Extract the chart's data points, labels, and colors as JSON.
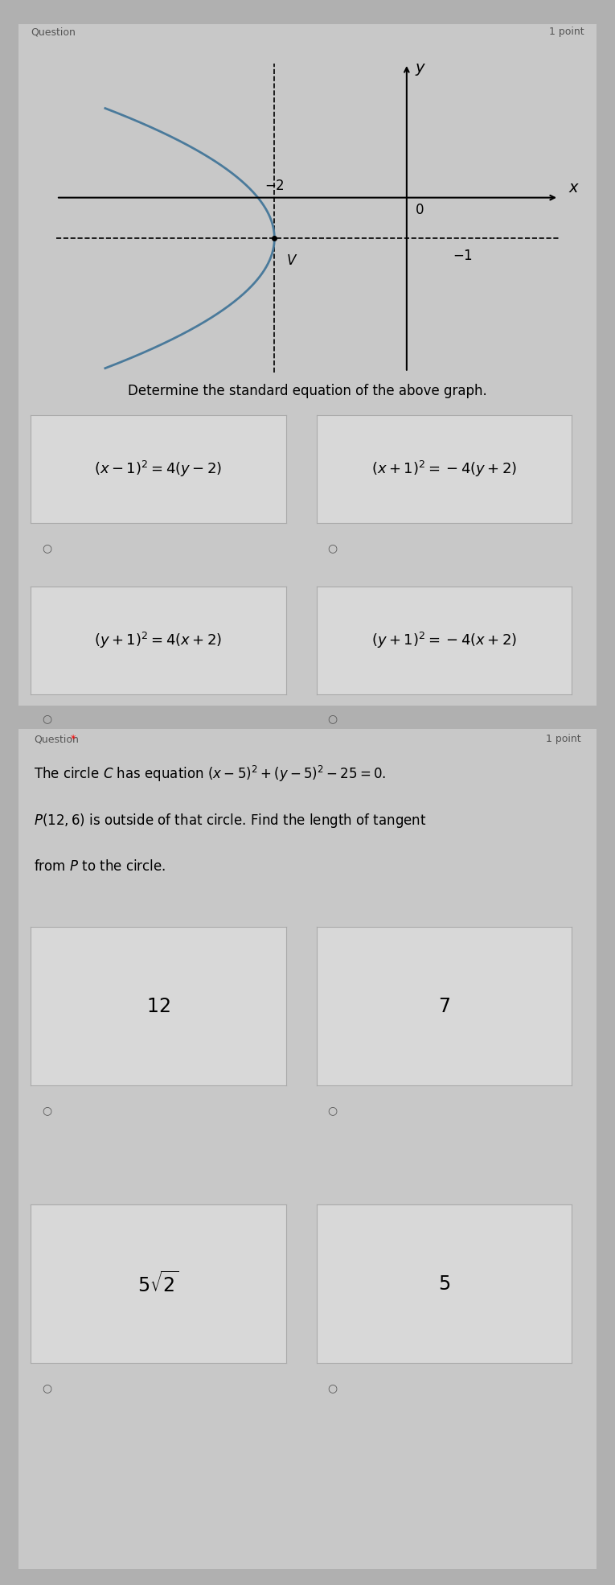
{
  "bg_color": "#b0b0b0",
  "card_bg": "#c8c8c8",
  "box_bg": "#d8d8d8",
  "section1": {
    "header_left": "Question",
    "header_right": "1 point",
    "description": "Determine the standard equation of the above graph.",
    "latex_q1": [
      "$(x-1)^2 = 4(y-2)$",
      "$(x+1)^2 = -4(y+2)$",
      "$(y+1)^2 = 4(x+2)$",
      "$(y+1)^2 = -4(x+2)$"
    ]
  },
  "section2": {
    "header_left": "Question *",
    "header_right": "1 point",
    "desc_line1": "The circle $C$ has equation $(x-5)^2+(y-5)^2-25=0$.",
    "desc_line2": "$P(12,6)$ is outside of that circle. Find the length of tangent",
    "desc_line3": "from $P$ to the circle.",
    "latex_q2": [
      "$12$",
      "$7$",
      "$5\\sqrt{2}$",
      "$5$"
    ]
  },
  "graph": {
    "xlim": [
      -5.5,
      2.5
    ],
    "ylim": [
      -4.5,
      3.5
    ],
    "parabola_color": "#4a7a9b",
    "vertex": [
      -2,
      -1
    ],
    "bg": "#c8c8c8"
  }
}
